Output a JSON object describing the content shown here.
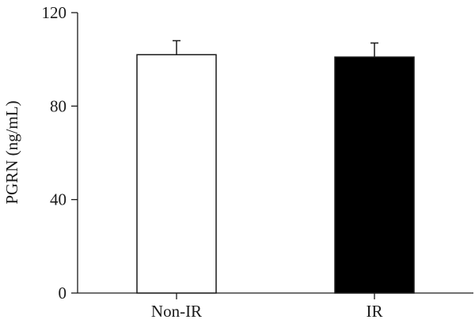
{
  "chart_data": {
    "type": "bar",
    "title": "",
    "xlabel": "",
    "ylabel": "PGRN (ng/mL)",
    "ylim": [
      0,
      120
    ],
    "yticks": [
      "0",
      "40",
      "80",
      "120"
    ],
    "categories": [
      "Non-IR",
      "IR"
    ],
    "values": [
      102,
      101
    ],
    "errors": [
      6,
      6
    ],
    "colors": [
      "#ffffff",
      "#000000"
    ],
    "grid": false,
    "legend": "none"
  }
}
